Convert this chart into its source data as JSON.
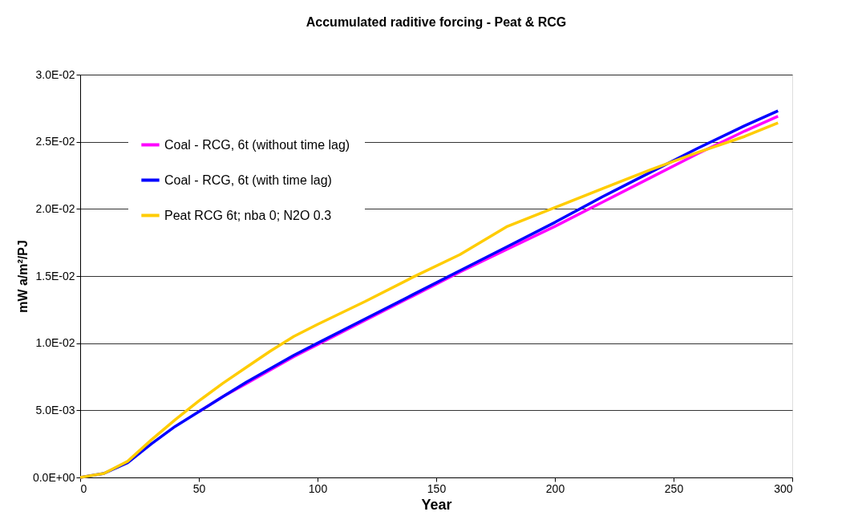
{
  "chart_data": {
    "type": "line",
    "title": "Accumulated raditive forcing - Peat & RCG",
    "xlabel": "Year",
    "ylabel": "mW a/m²/PJ",
    "x": [
      0,
      10,
      20,
      30,
      40,
      50,
      60,
      70,
      80,
      90,
      100,
      120,
      140,
      160,
      180,
      200,
      220,
      240,
      260,
      280,
      294
    ],
    "series": [
      {
        "name": "Coal - RCG, 6t  (without time lag)",
        "color": "#ff00ff",
        "values": [
          null,
          null,
          null,
          null,
          null,
          0.0049,
          0.006,
          0.007,
          0.008,
          0.009,
          0.0099,
          0.0117,
          0.0135,
          0.0153,
          0.017,
          0.0187,
          0.0205,
          0.0223,
          0.0241,
          0.0258,
          0.0269
        ]
      },
      {
        "name": "Coal - RCG, 6t (with time lag)",
        "color": "#0000ff",
        "values": [
          0,
          0.0003,
          0.0011,
          0.0025,
          0.0038,
          0.0049,
          0.006,
          0.0071,
          0.0081,
          0.0091,
          0.01,
          0.0118,
          0.0136,
          0.0154,
          0.0172,
          0.019,
          0.0209,
          0.0227,
          0.0245,
          0.0262,
          0.0273
        ]
      },
      {
        "name": "Peat RCG 6t; nba 0; N2O 0.3",
        "color": "#ffcc00",
        "values": [
          0,
          0.0003,
          0.0012,
          0.0028,
          0.0043,
          0.0057,
          0.007,
          0.0082,
          0.0094,
          0.0105,
          0.0114,
          0.0131,
          0.0149,
          0.0166,
          0.0187,
          0.0201,
          0.0215,
          0.0229,
          0.0242,
          0.0254,
          0.0264
        ]
      }
    ],
    "xlim": [
      0,
      300
    ],
    "xticks": [
      0,
      50,
      100,
      150,
      200,
      250,
      300
    ],
    "ylim": [
      0,
      0.03
    ],
    "yticks": [
      {
        "value": 0,
        "label": "0.0E+00"
      },
      {
        "value": 0.005,
        "label": "5.0E-03"
      },
      {
        "value": 0.01,
        "label": "1.0E-02"
      },
      {
        "value": 0.015,
        "label": "1.5E-02"
      },
      {
        "value": 0.02,
        "label": "2.0E-02"
      },
      {
        "value": 0.025,
        "label": "2.5E-02"
      },
      {
        "value": 0.03,
        "label": "3.0E-02"
      }
    ],
    "grid": "y",
    "legend": "top left",
    "marker": "none",
    "line_style": "solid"
  }
}
